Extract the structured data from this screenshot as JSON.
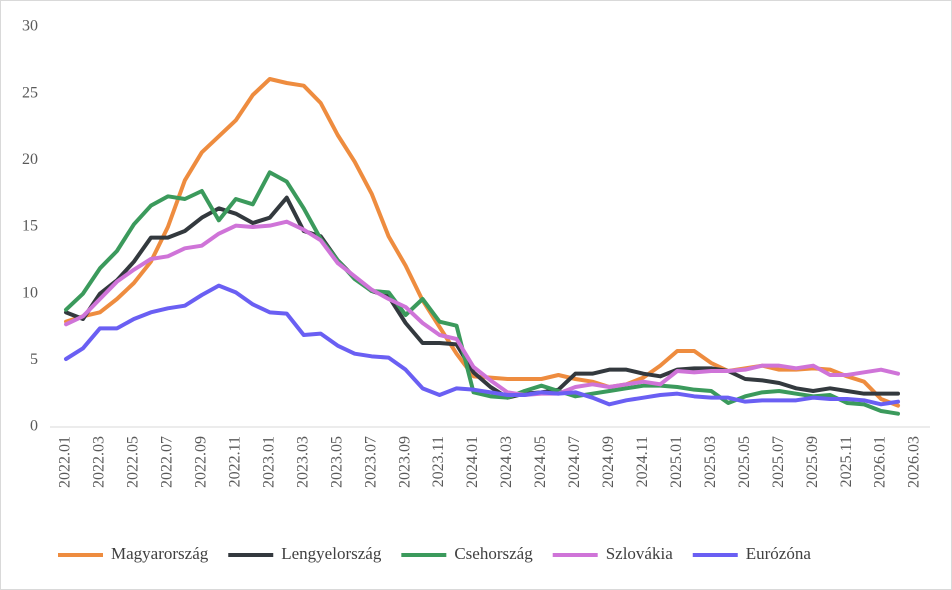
{
  "chart_data": {
    "type": "line",
    "categories": [
      "2022.01",
      null,
      "2022.03",
      null,
      "2022.05",
      null,
      "2022.07",
      null,
      "2022.09",
      null,
      "2022.11",
      null,
      "2023.01",
      null,
      "2023.03",
      null,
      "2023.05",
      null,
      "2023.07",
      null,
      "2023.09",
      null,
      "2023.11",
      null,
      "2024.01",
      null,
      "2024.03",
      null,
      "2024.05",
      null,
      "2024.07",
      null,
      "2024.09",
      null,
      "2024.11",
      null,
      "2025.01",
      null,
      "2025.03",
      null,
      "2025.05",
      null,
      "2025.07",
      null,
      "2025.09",
      null,
      "2025.11",
      null,
      "2026.01",
      null,
      "2026.03"
    ],
    "series": [
      {
        "name": "Magyarország",
        "color": "#ee8c3f",
        "values": [
          7.9,
          8.3,
          8.6,
          9.6,
          10.8,
          12.4,
          15.0,
          18.5,
          20.6,
          21.8,
          23.0,
          24.9,
          26.1,
          25.8,
          25.6,
          24.3,
          21.9,
          19.9,
          17.5,
          14.3,
          12.1,
          9.5,
          7.5,
          5.5,
          3.8,
          3.7,
          3.6,
          3.6,
          3.6,
          3.9,
          3.6,
          3.4,
          3.0,
          3.2,
          3.7,
          4.6,
          5.7,
          5.7,
          4.8,
          4.2,
          4.4,
          4.6,
          4.3,
          4.3,
          4.4,
          4.3,
          3.8,
          3.4,
          2.1,
          1.6,
          null
        ]
      },
      {
        "name": "Lengyelország",
        "color": "#33393e",
        "values": [
          8.6,
          8.1,
          10.0,
          11.0,
          12.4,
          14.2,
          14.2,
          14.7,
          15.7,
          16.4,
          16.0,
          15.3,
          15.7,
          17.2,
          14.7,
          14.3,
          12.5,
          11.2,
          10.2,
          9.8,
          7.8,
          6.3,
          6.3,
          6.2,
          4.1,
          3.0,
          2.2,
          2.5,
          2.6,
          2.8,
          4.0,
          4.0,
          4.3,
          4.3,
          4.0,
          3.8,
          4.3,
          4.4,
          4.4,
          4.2,
          3.6,
          3.5,
          3.3,
          2.9,
          2.7,
          2.9,
          2.7,
          2.5,
          2.5,
          2.5,
          null
        ]
      },
      {
        "name": "Csehország",
        "color": "#3b9a5c",
        "values": [
          8.8,
          10.0,
          11.9,
          13.2,
          15.2,
          16.6,
          17.3,
          17.1,
          17.7,
          15.5,
          17.1,
          16.7,
          19.1,
          18.4,
          16.4,
          14.1,
          12.5,
          11.1,
          10.2,
          10.1,
          8.4,
          9.6,
          7.9,
          7.6,
          2.6,
          2.3,
          2.2,
          2.7,
          3.1,
          2.7,
          2.3,
          2.5,
          2.7,
          2.9,
          3.1,
          3.1,
          3.0,
          2.8,
          2.7,
          1.8,
          2.3,
          2.6,
          2.7,
          2.5,
          2.3,
          2.4,
          1.8,
          1.7,
          1.2,
          1.0,
          null
        ]
      },
      {
        "name": "Szlovákia",
        "color": "#cf74d8",
        "values": [
          7.7,
          8.3,
          9.6,
          10.9,
          11.8,
          12.6,
          12.8,
          13.4,
          13.6,
          14.5,
          15.1,
          15.0,
          15.1,
          15.4,
          14.8,
          14.0,
          12.3,
          11.3,
          10.3,
          9.6,
          9.0,
          7.8,
          6.9,
          6.6,
          4.5,
          3.5,
          2.6,
          2.4,
          2.5,
          2.5,
          3.0,
          3.2,
          3.0,
          3.2,
          3.4,
          3.2,
          4.2,
          4.1,
          4.2,
          4.2,
          4.3,
          4.6,
          4.6,
          4.4,
          4.6,
          3.9,
          3.9,
          4.1,
          4.3,
          4.0,
          null
        ]
      },
      {
        "name": "Eurózóna",
        "color": "#6a5ff3",
        "values": [
          5.1,
          5.9,
          7.4,
          7.4,
          8.1,
          8.6,
          8.9,
          9.1,
          9.9,
          10.6,
          10.1,
          9.2,
          8.6,
          8.5,
          6.9,
          7.0,
          6.1,
          5.5,
          5.3,
          5.2,
          4.3,
          2.9,
          2.4,
          2.9,
          2.8,
          2.6,
          2.4,
          2.4,
          2.6,
          2.5,
          2.6,
          2.2,
          1.7,
          2.0,
          2.2,
          2.4,
          2.5,
          2.3,
          2.2,
          2.2,
          1.9,
          2.0,
          2.0,
          2.0,
          2.2,
          2.1,
          2.1,
          2.0,
          1.7,
          1.9,
          null
        ]
      }
    ],
    "ylim": [
      0,
      30
    ],
    "yticks": [
      0,
      5,
      10,
      15,
      20,
      25,
      30
    ],
    "grid": false,
    "legend": "bottom"
  }
}
